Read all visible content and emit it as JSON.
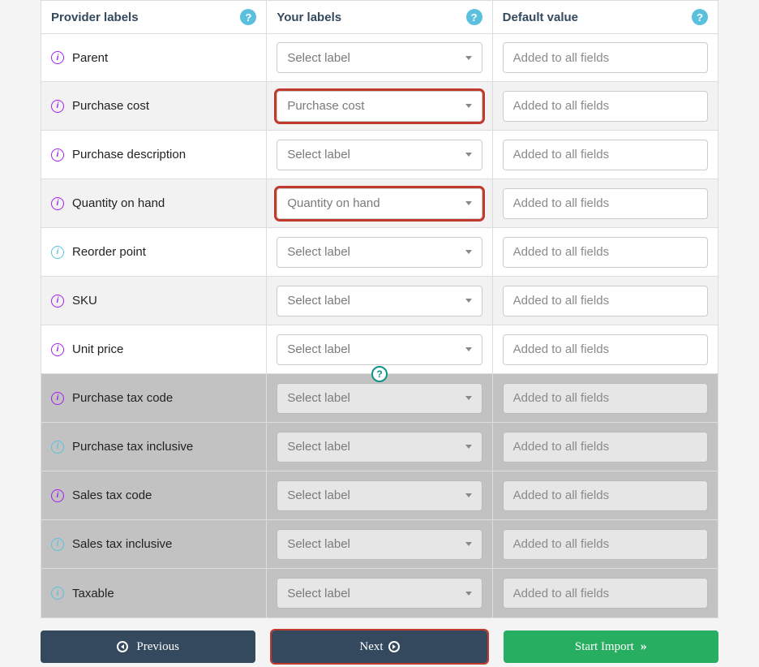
{
  "headers": {
    "provider": "Provider labels",
    "your": "Your labels",
    "default": "Default value"
  },
  "select_placeholder": "Select label",
  "default_placeholder": "Added to all fields",
  "rows": [
    {
      "label": "Parent",
      "icon": "purple",
      "stripe": false,
      "disabled": false,
      "selected": "Select label",
      "highlighted": false,
      "partial": true
    },
    {
      "label": "Purchase cost",
      "icon": "purple",
      "stripe": true,
      "disabled": false,
      "selected": "Purchase cost",
      "highlighted": true
    },
    {
      "label": "Purchase description",
      "icon": "purple",
      "stripe": false,
      "disabled": false,
      "selected": "Select label",
      "highlighted": false
    },
    {
      "label": "Quantity on hand",
      "icon": "purple",
      "stripe": true,
      "disabled": false,
      "selected": "Quantity on hand",
      "highlighted": true
    },
    {
      "label": "Reorder point",
      "icon": "blue",
      "stripe": false,
      "disabled": false,
      "selected": "Select label",
      "highlighted": false
    },
    {
      "label": "SKU",
      "icon": "purple",
      "stripe": true,
      "disabled": false,
      "selected": "Select label",
      "highlighted": false
    },
    {
      "label": "Unit price",
      "icon": "purple",
      "stripe": false,
      "disabled": false,
      "selected": "Select label",
      "highlighted": false
    },
    {
      "label": "Purchase tax code",
      "icon": "purple",
      "stripe": false,
      "disabled": true,
      "selected": "Select label",
      "highlighted": false,
      "float_help": true
    },
    {
      "label": "Purchase tax inclusive",
      "icon": "blue",
      "stripe": false,
      "disabled": true,
      "selected": "Select label",
      "highlighted": false
    },
    {
      "label": "Sales tax code",
      "icon": "purple",
      "stripe": false,
      "disabled": true,
      "selected": "Select label",
      "highlighted": false
    },
    {
      "label": "Sales tax inclusive",
      "icon": "blue",
      "stripe": false,
      "disabled": true,
      "selected": "Select label",
      "highlighted": false
    },
    {
      "label": "Taxable",
      "icon": "blue",
      "stripe": false,
      "disabled": true,
      "selected": "Select label",
      "highlighted": false
    }
  ],
  "buttons": {
    "previous": "Previous",
    "next": "Next",
    "start_import": "Start Import"
  },
  "colors": {
    "primary_dark": "#34495e",
    "success": "#27ae60",
    "highlight_border": "#c0392b",
    "help_bg": "#5bc0de",
    "info_purple": "#a020f0",
    "info_blue": "#5bc0de",
    "float_help": "#0d9488"
  }
}
